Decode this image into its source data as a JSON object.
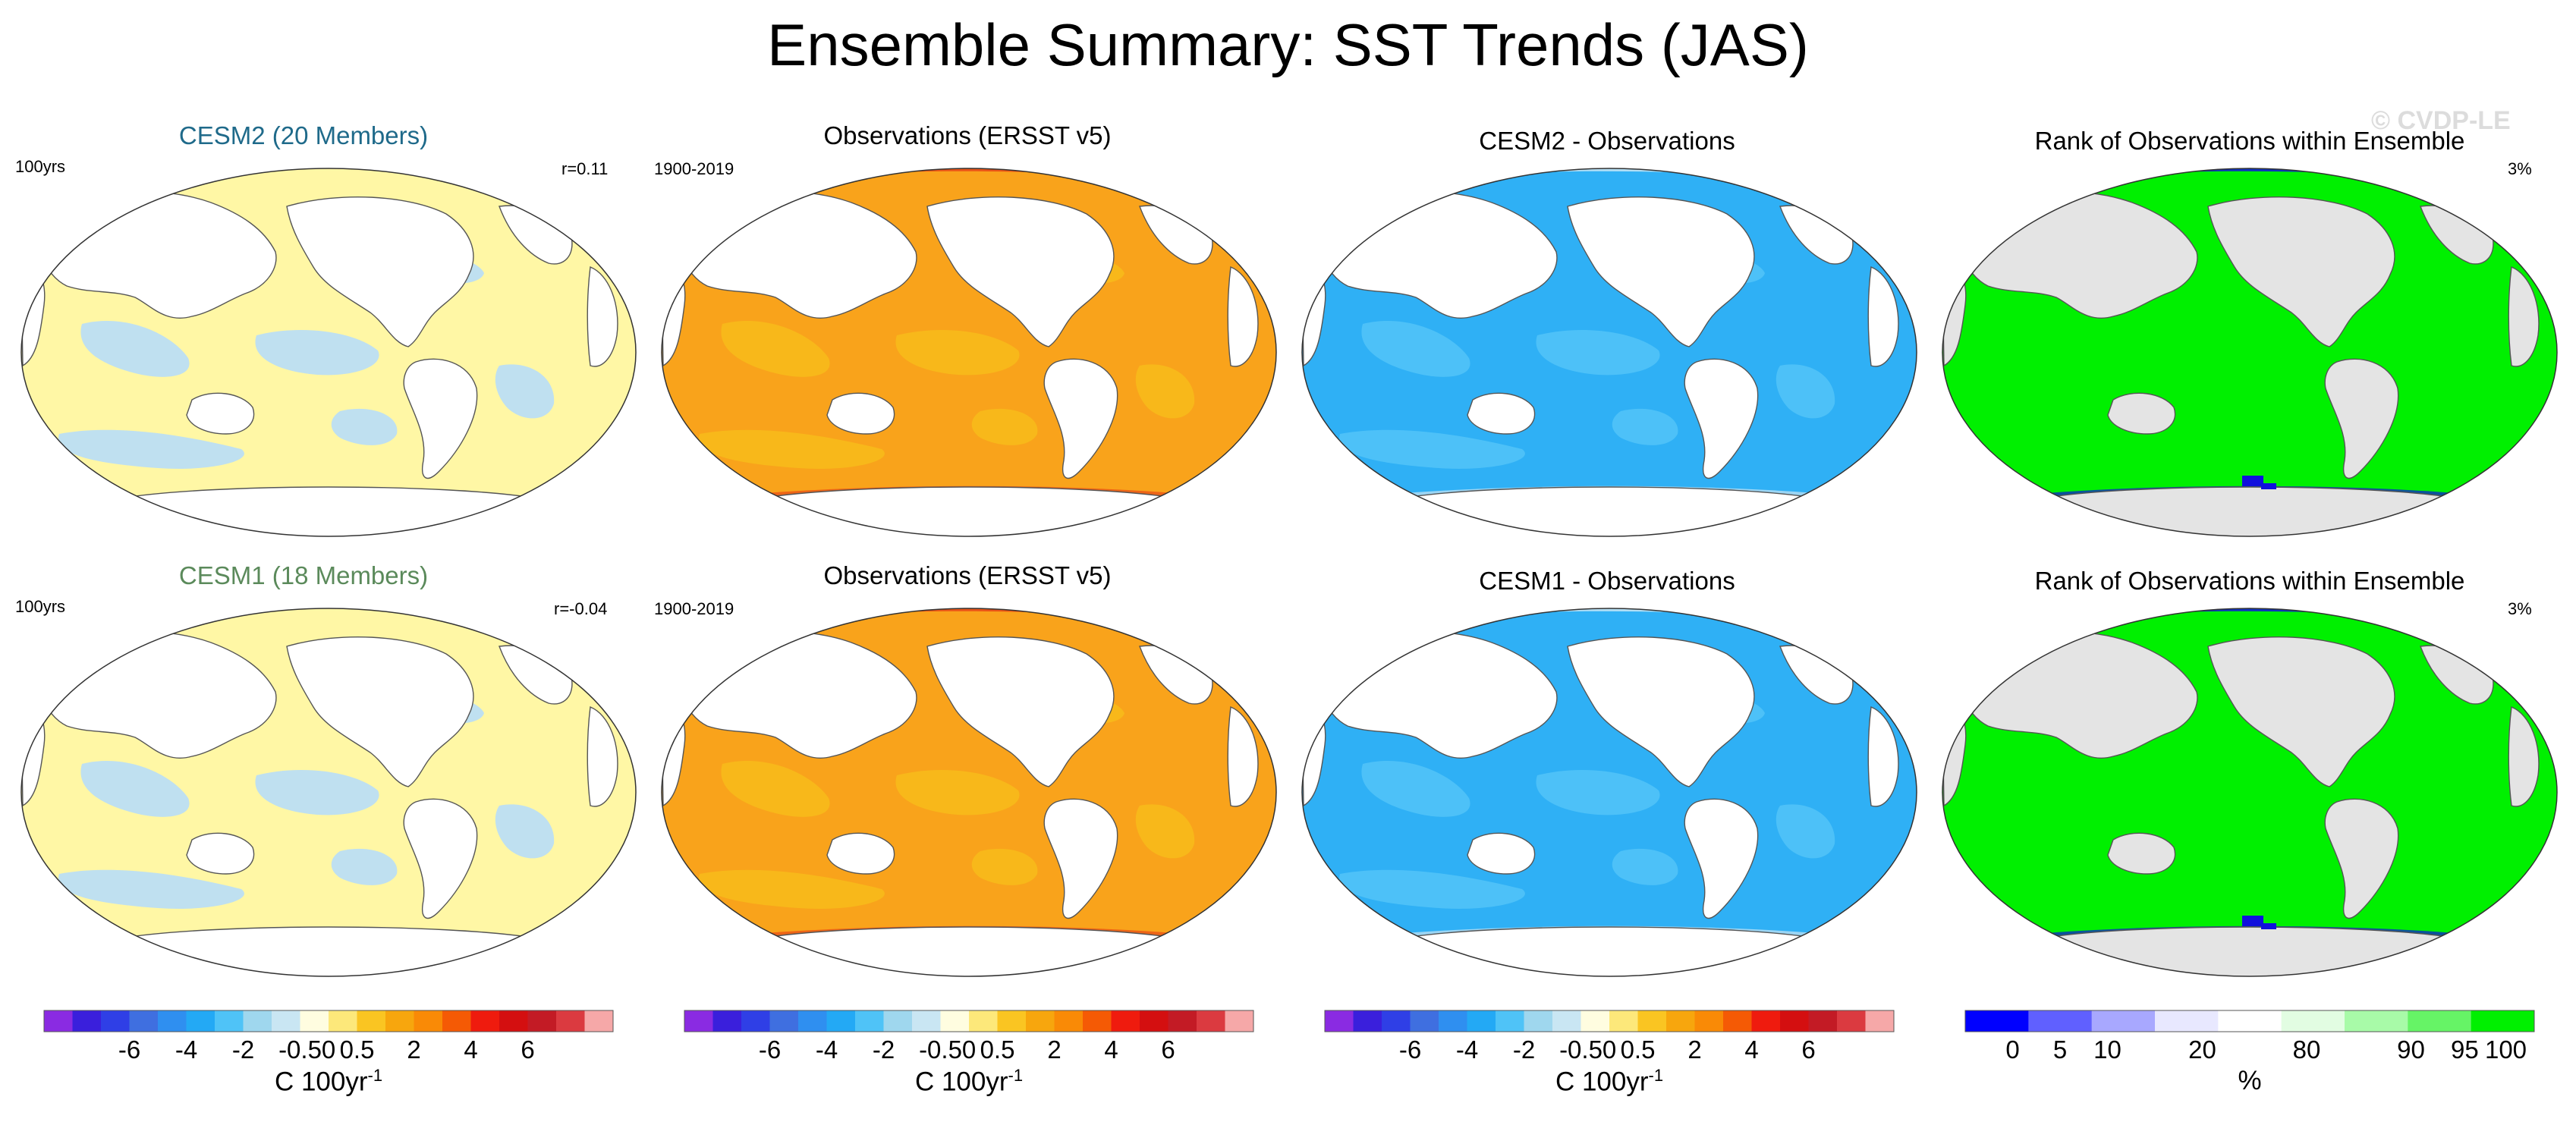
{
  "title": "Ensemble Summary: SST Trends (JAS)",
  "watermark": "© CVDP-LE",
  "rows": [
    {
      "model_panel": {
        "title": "CESM2 (20 Members)",
        "title_color": "#1f6a8a",
        "left_note": "100yrs",
        "right_note": "r=0.11"
      },
      "obs_panel": {
        "title": "Observations (ERSST v5)",
        "left_note": "1900-2019"
      },
      "diff_panel": {
        "title": "CESM2 - Observations"
      },
      "rank_panel": {
        "title": "Rank of Observations within Ensemble",
        "right_note": "3%"
      }
    },
    {
      "model_panel": {
        "title": "CESM1 (18 Members)",
        "title_color": "#5b8a5b",
        "left_note": "100yrs",
        "right_note": "r=-0.04"
      },
      "obs_panel": {
        "title": "Observations (ERSST v5)",
        "left_note": "1900-2019"
      },
      "diff_panel": {
        "title": "CESM1 - Observations"
      },
      "rank_panel": {
        "title": "Rank of Observations within Ensemble",
        "right_note": "3%"
      }
    }
  ],
  "colorbars": {
    "trend": {
      "colors": [
        "#8a2be2",
        "#3a1fdc",
        "#2f3fe6",
        "#3f6fe0",
        "#2f8ff0",
        "#23a9f5",
        "#4fc3f7",
        "#9fd7ee",
        "#c9e6f3",
        "#fffde0",
        "#fde87a",
        "#fac522",
        "#f7a60d",
        "#f98a06",
        "#f55a05",
        "#ef1b0e",
        "#d40f10",
        "#c31b25",
        "#db3a40",
        "#f6a8a8"
      ],
      "ticks": [
        "-6",
        "-4",
        "-2",
        "-0.5",
        "0",
        "0.5",
        "2",
        "4",
        "6"
      ],
      "label": "C 100yr",
      "label_sup": "-1"
    },
    "rank": {
      "colors": [
        "#0000ff",
        "#6060ff",
        "#a8a8ff",
        "#e8e8ff",
        "#ffffff",
        "#e2fde2",
        "#a8fba8",
        "#66f466",
        "#00f000"
      ],
      "ticks": [
        "0",
        "5",
        "10",
        "20",
        "80",
        "90",
        "95",
        "100"
      ],
      "label": "%"
    }
  },
  "map_styles": {
    "model": {
      "base": "#fff7a5",
      "blob": "#bfe0f0"
    },
    "obs": {
      "base": "#f9a31b",
      "blob": "#f8b81a",
      "accent": "#e84816"
    },
    "diff": {
      "base": "#2fb0f5",
      "blob": "#4dc1f8",
      "accent": "#c9e6f3"
    },
    "rank": {
      "base": "#00f000",
      "land": "#e4e4e4",
      "accent": "#1010dd"
    }
  }
}
